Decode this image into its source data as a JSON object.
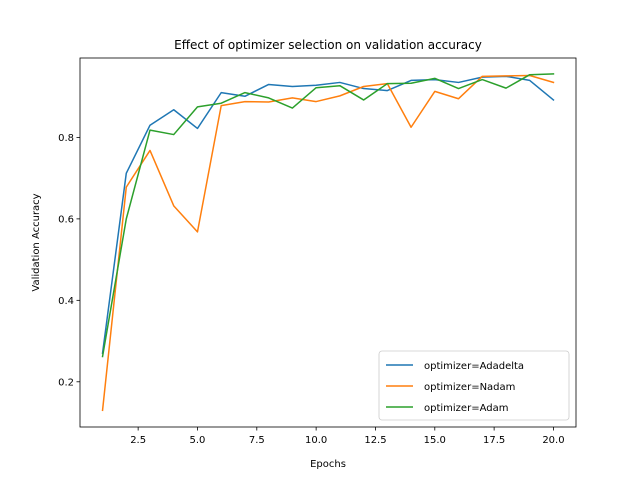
{
  "chart_data": {
    "type": "line",
    "title": "Effect of optimizer selection on validation accuracy",
    "xlabel": "Epochs",
    "ylabel": "Validation Accuracy",
    "xlim": [
      0.05,
      20.95
    ],
    "ylim": [
      0.089,
      0.995
    ],
    "x_ticks": [
      2.5,
      5.0,
      7.5,
      10.0,
      12.5,
      15.0,
      17.5,
      20.0
    ],
    "x_tick_labels": [
      "2.5",
      "5.0",
      "7.5",
      "10.0",
      "12.5",
      "15.0",
      "17.5",
      "20.0"
    ],
    "y_ticks": [
      0.2,
      0.4,
      0.6,
      0.8
    ],
    "y_tick_labels": [
      "0.2",
      "0.4",
      "0.6",
      "0.8"
    ],
    "grid": false,
    "legend_position": "lower-right",
    "x": [
      1,
      2,
      3,
      4,
      5,
      6,
      7,
      8,
      9,
      10,
      11,
      12,
      13,
      14,
      15,
      16,
      17,
      18,
      19,
      20
    ],
    "series": [
      {
        "name": "optimizer=Adadelta",
        "color": "#1f77b4",
        "values": [
          0.27,
          0.712,
          0.83,
          0.868,
          0.822,
          0.91,
          0.901,
          0.93,
          0.925,
          0.928,
          0.935,
          0.92,
          0.915,
          0.94,
          0.942,
          0.935,
          0.948,
          0.95,
          0.94,
          0.892
        ]
      },
      {
        "name": "optimizer=Nadam",
        "color": "#ff7f0e",
        "values": [
          0.13,
          0.678,
          0.768,
          0.632,
          0.568,
          0.878,
          0.888,
          0.887,
          0.897,
          0.888,
          0.902,
          0.925,
          0.932,
          0.825,
          0.913,
          0.895,
          0.95,
          0.951,
          0.952,
          0.935
        ]
      },
      {
        "name": "optimizer=Adam",
        "color": "#2ca02c",
        "values": [
          0.262,
          0.6,
          0.818,
          0.807,
          0.875,
          0.884,
          0.91,
          0.897,
          0.872,
          0.922,
          0.927,
          0.892,
          0.932,
          0.933,
          0.945,
          0.92,
          0.942,
          0.921,
          0.954,
          0.956
        ]
      }
    ]
  }
}
